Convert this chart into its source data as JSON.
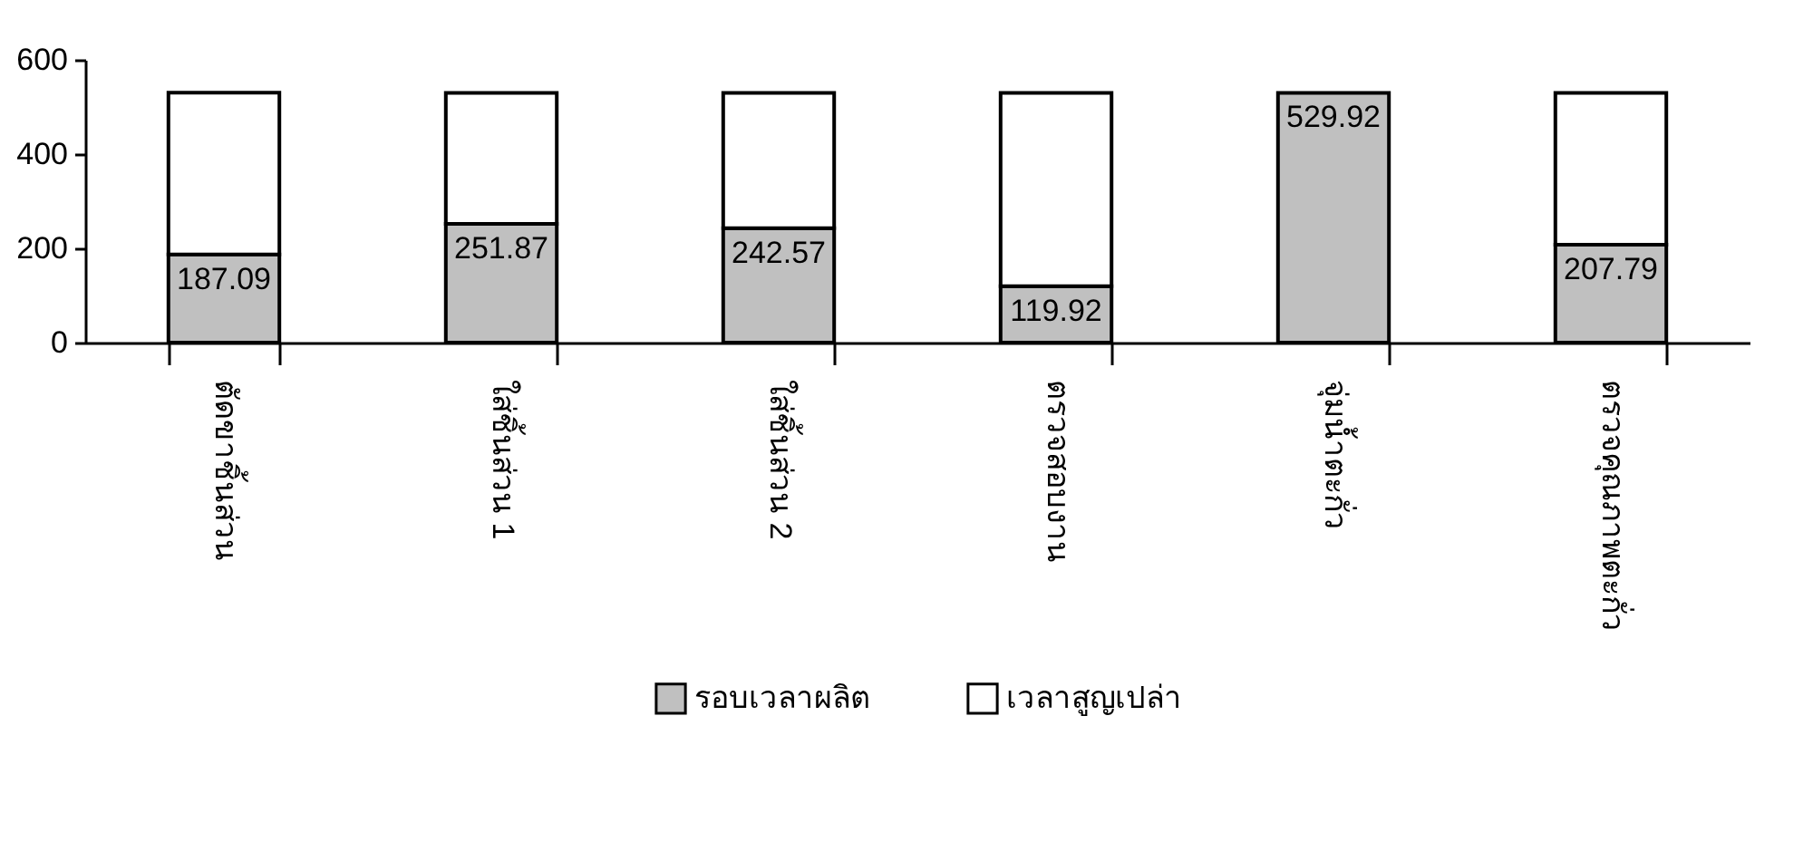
{
  "chart_data": {
    "type": "bar",
    "stacked": true,
    "categories": [
      "ตัดขาชิ้นส่วน",
      "ใส่ชิ้นส่วน 1",
      "ใส่ชิ้นส่วน 2",
      "ตรวจสอบงาน",
      "จุ่มน้ำตะกั่ว",
      "ตรวจคุณภาพตะกั่ว"
    ],
    "series": [
      {
        "name": "รอบเวลาผลิต",
        "color": "#c0c0c0",
        "values": [
          187.09,
          251.87,
          242.57,
          119.92,
          529.92,
          207.79
        ],
        "value_labels": [
          "187.09",
          "251.87",
          "242.57",
          "119.92",
          "529.92",
          "207.79"
        ]
      },
      {
        "name": "เวลาสูญเปล่า",
        "color": "#ffffff",
        "values": [
          343,
          278,
          287,
          410,
          null,
          322
        ]
      }
    ],
    "ylim": [
      0,
      600
    ],
    "yticks": [
      0,
      200,
      400,
      600
    ],
    "grid": false,
    "legend": "bottom"
  }
}
